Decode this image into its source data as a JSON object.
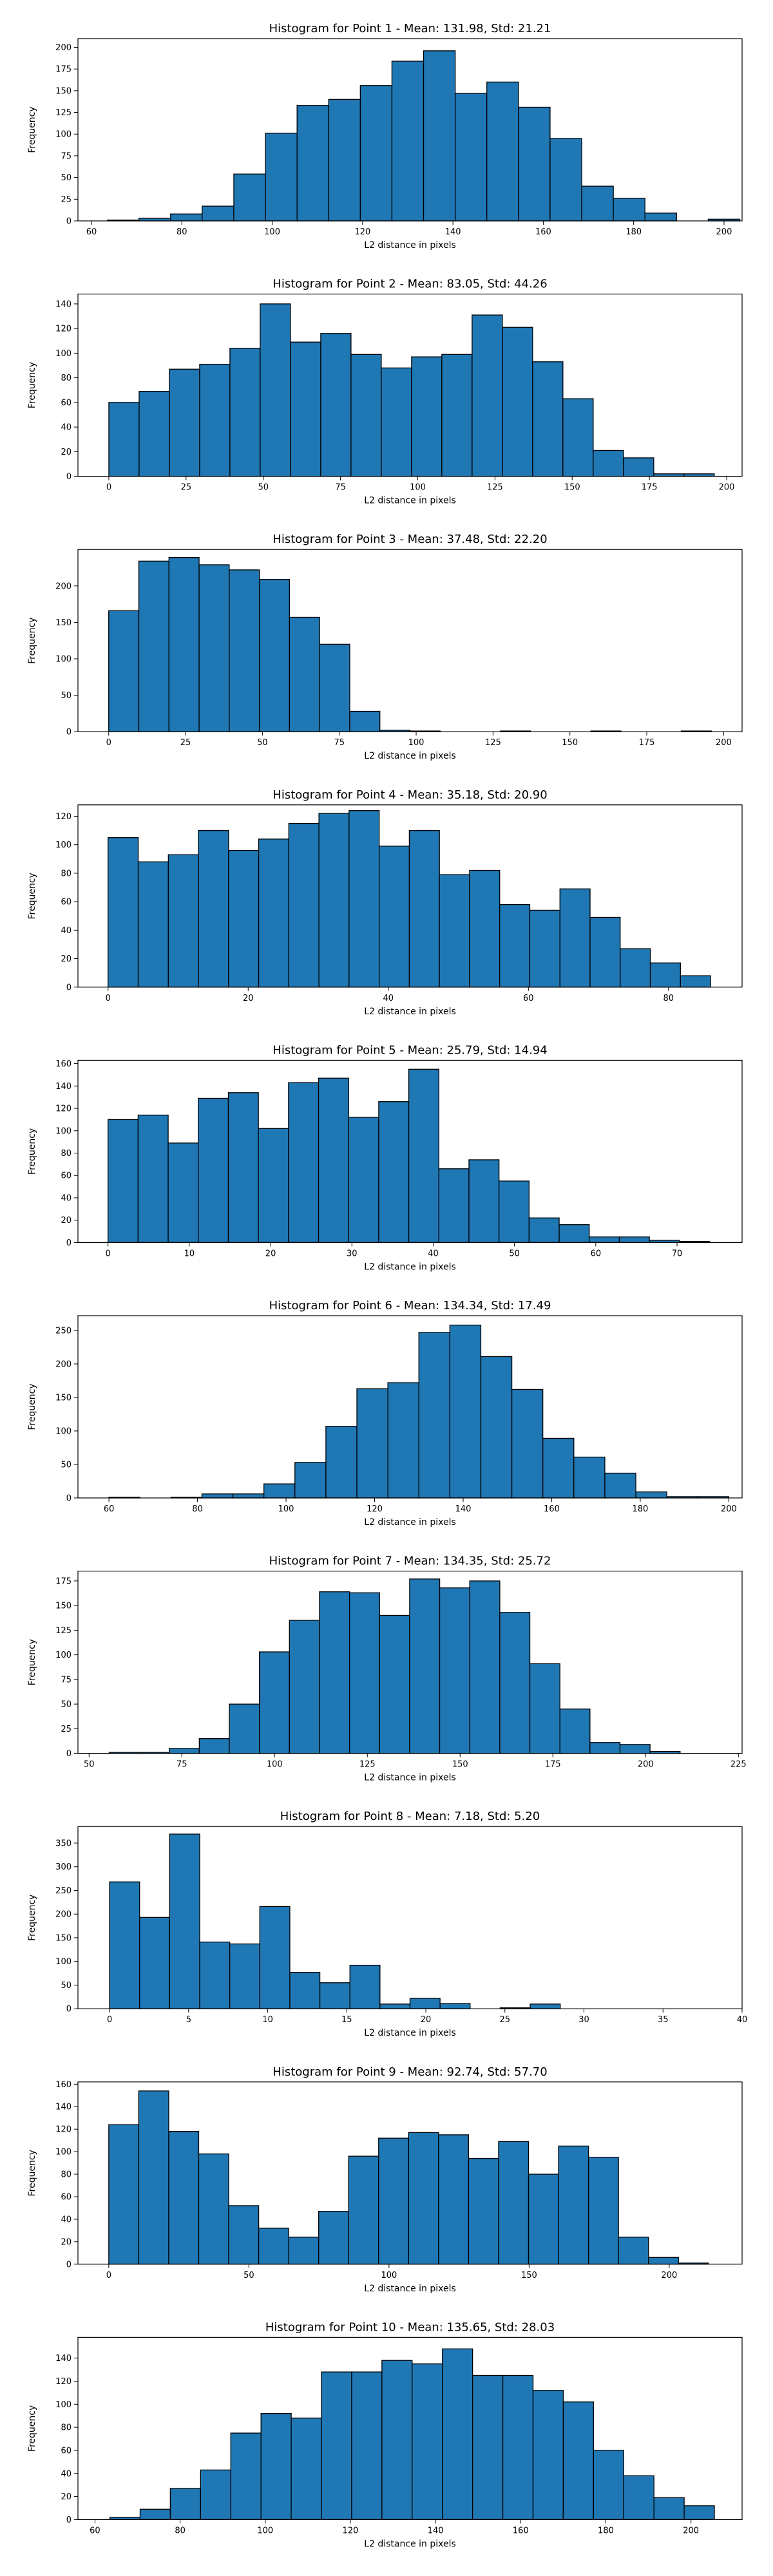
{
  "chart_data": [
    {
      "type": "bar",
      "title": "Histogram for Point 1 - Mean: 131.98, Std: 21.21",
      "xlabel": "L2 distance in pixels",
      "ylabel": "Frequency",
      "xlim": [
        57,
        204
      ],
      "ylim": [
        0,
        210
      ],
      "xticks": [
        60,
        80,
        100,
        120,
        140,
        160,
        180,
        200
      ],
      "yticks": [
        0,
        25,
        50,
        75,
        100,
        125,
        150,
        175,
        200
      ],
      "bin_edges": [
        63.5,
        70.5,
        77.5,
        84.5,
        91.5,
        98.5,
        105.5,
        112.5,
        119.5,
        126.5,
        133.5,
        140.5,
        147.5,
        154.5,
        161.5,
        168.5,
        175.5,
        182.5,
        189.5,
        196.5,
        203.5
      ],
      "values": [
        1,
        3,
        8,
        17,
        54,
        101,
        133,
        140,
        156,
        184,
        196,
        147,
        160,
        131,
        95,
        40,
        26,
        9,
        0,
        2
      ]
    },
    {
      "type": "bar",
      "title": "Histogram for Point 2 - Mean: 83.05, Std: 44.26",
      "xlabel": "L2 distance in pixels",
      "ylabel": "Frequency",
      "xlim": [
        -10,
        205
      ],
      "ylim": [
        0,
        148
      ],
      "xticks": [
        0,
        25,
        50,
        75,
        100,
        125,
        150,
        175,
        200
      ],
      "yticks": [
        0,
        20,
        40,
        60,
        80,
        100,
        120,
        140
      ],
      "bin_edges": [
        0,
        9.8,
        19.6,
        29.4,
        39.2,
        49,
        58.8,
        68.6,
        78.4,
        88.2,
        98,
        107.8,
        117.6,
        127.4,
        137.2,
        147,
        156.8,
        166.6,
        176.4,
        186.2,
        196
      ],
      "values": [
        60,
        69,
        87,
        91,
        104,
        140,
        109,
        116,
        99,
        88,
        97,
        99,
        131,
        121,
        93,
        63,
        21,
        15,
        2,
        2
      ]
    },
    {
      "type": "bar",
      "title": "Histogram for Point 3 - Mean: 37.48, Std: 22.20",
      "xlabel": "L2 distance in pixels",
      "ylabel": "Frequency",
      "xlim": [
        -10,
        206
      ],
      "ylim": [
        0,
        250
      ],
      "xticks": [
        0,
        25,
        50,
        75,
        100,
        125,
        150,
        175,
        200
      ],
      "yticks": [
        0,
        50,
        100,
        150,
        200
      ],
      "bin_edges": [
        0,
        9.8,
        19.6,
        29.4,
        39.2,
        49,
        58.8,
        68.6,
        78.4,
        88.2,
        98,
        107.8,
        117.6,
        127.4,
        137.2,
        147,
        156.8,
        166.6,
        176.4,
        186.2,
        196
      ],
      "values": [
        166,
        234,
        239,
        229,
        222,
        209,
        157,
        120,
        28,
        2,
        1,
        0,
        0,
        1,
        0,
        0,
        1,
        0,
        0,
        1
      ]
    },
    {
      "type": "bar",
      "title": "Histogram for Point 4 - Mean: 35.18, Std: 20.90",
      "xlabel": "L2 distance in pixels",
      "ylabel": "Frequency",
      "xlim": [
        -4.3,
        90.5
      ],
      "ylim": [
        0,
        128
      ],
      "xticks": [
        0,
        20,
        40,
        60,
        80
      ],
      "yticks": [
        0,
        20,
        40,
        60,
        80,
        100,
        120
      ],
      "bin_edges": [
        0,
        4.3,
        8.6,
        12.9,
        17.2,
        21.5,
        25.8,
        30.1,
        34.4,
        38.7,
        43,
        47.3,
        51.6,
        55.9,
        60.2,
        64.5,
        68.8,
        73.1,
        77.4,
        81.7,
        86
      ],
      "values": [
        105,
        88,
        93,
        110,
        96,
        104,
        115,
        122,
        124,
        99,
        110,
        79,
        82,
        58,
        54,
        69,
        49,
        27,
        17,
        8
      ]
    },
    {
      "type": "bar",
      "title": "Histogram for Point 5 - Mean: 25.79, Std: 14.94",
      "xlabel": "L2 distance in pixels",
      "ylabel": "Frequency",
      "xlim": [
        -3.7,
        78
      ],
      "ylim": [
        0,
        163
      ],
      "xticks": [
        0,
        10,
        20,
        30,
        40,
        50,
        60,
        70
      ],
      "yticks": [
        0,
        20,
        40,
        60,
        80,
        100,
        120,
        140,
        160
      ],
      "bin_edges": [
        0,
        3.7,
        7.4,
        11.1,
        14.8,
        18.5,
        22.2,
        25.9,
        29.6,
        33.3,
        37,
        40.7,
        44.4,
        48.1,
        51.8,
        55.5,
        59.2,
        62.9,
        66.6,
        70.3,
        74
      ],
      "values": [
        110,
        114,
        89,
        129,
        134,
        102,
        143,
        147,
        112,
        126,
        155,
        66,
        74,
        55,
        22,
        16,
        5,
        5,
        2,
        1
      ]
    },
    {
      "type": "bar",
      "title": "Histogram for Point 6 - Mean: 134.34, Std: 17.49",
      "xlabel": "L2 distance in pixels",
      "ylabel": "Frequency",
      "xlim": [
        53,
        203
      ],
      "ylim": [
        0,
        272
      ],
      "xticks": [
        60,
        80,
        100,
        120,
        140,
        160,
        180,
        200
      ],
      "yticks": [
        0,
        50,
        100,
        150,
        200,
        250
      ],
      "bin_edges": [
        60,
        67,
        74,
        81,
        88,
        95,
        102,
        109,
        116,
        123,
        130,
        137,
        144,
        151,
        158,
        165,
        172,
        179,
        186,
        193,
        200
      ],
      "values": [
        1,
        0,
        1,
        6,
        6,
        21,
        53,
        107,
        163,
        172,
        247,
        258,
        211,
        162,
        89,
        61,
        37,
        9,
        2,
        2
      ]
    },
    {
      "type": "bar",
      "title": "Histogram for Point 7 - Mean: 134.35, Std: 25.72",
      "xlabel": "L2 distance in pixels",
      "ylabel": "Frequency",
      "xlim": [
        47,
        226
      ],
      "ylim": [
        0,
        185
      ],
      "xticks": [
        50,
        75,
        100,
        125,
        150,
        175,
        200,
        225
      ],
      "yticks": [
        0,
        25,
        50,
        75,
        100,
        125,
        150,
        175
      ],
      "bin_edges": [
        55.4,
        63.5,
        71.6,
        79.7,
        87.8,
        95.9,
        104,
        112.1,
        120.2,
        128.3,
        136.4,
        144.5,
        152.6,
        160.7,
        168.8,
        176.9,
        185,
        193.1,
        201.2,
        209.3,
        217.4
      ],
      "values": [
        1,
        1,
        5,
        15,
        50,
        103,
        135,
        164,
        163,
        140,
        177,
        168,
        175,
        143,
        91,
        45,
        11,
        9,
        2,
        0
      ]
    },
    {
      "type": "bar",
      "title": "Histogram for Point 8 - Mean: 7.18, Std: 5.20",
      "xlabel": "L2 distance in pixels",
      "ylabel": "Frequency",
      "xlim": [
        -2,
        40
      ],
      "ylim": [
        0,
        385
      ],
      "xticks": [
        0,
        5,
        10,
        15,
        20,
        25,
        30,
        35,
        40
      ],
      "yticks": [
        0,
        50,
        100,
        150,
        200,
        250,
        300,
        350
      ],
      "bin_edges": [
        0,
        1.9,
        3.8,
        5.7,
        7.6,
        9.5,
        11.4,
        13.3,
        15.2,
        17.1,
        19,
        20.9,
        22.8,
        24.7,
        26.6,
        28.5,
        30.4,
        32.3,
        34.2,
        36.1,
        38
      ],
      "values": [
        268,
        193,
        369,
        141,
        137,
        216,
        77,
        55,
        92,
        10,
        22,
        11,
        0,
        2,
        10,
        0,
        0,
        0,
        0,
        0
      ]
    },
    {
      "type": "bar",
      "title": "Histogram for Point 9 - Mean: 92.74, Std: 57.70",
      "xlabel": "L2 distance in pixels",
      "ylabel": "Frequency",
      "xlim": [
        -11,
        226
      ],
      "ylim": [
        0,
        162
      ],
      "xticks": [
        0,
        50,
        100,
        150,
        200
      ],
      "yticks": [
        0,
        20,
        40,
        60,
        80,
        100,
        120,
        140,
        160
      ],
      "bin_edges": [
        0,
        10.7,
        21.4,
        32.1,
        42.8,
        53.5,
        64.2,
        74.9,
        85.6,
        96.3,
        107,
        117.7,
        128.4,
        139.1,
        149.8,
        160.5,
        171.2,
        181.9,
        192.6,
        203.3,
        214
      ],
      "values": [
        124,
        154,
        118,
        98,
        52,
        32,
        24,
        47,
        96,
        112,
        117,
        115,
        94,
        109,
        80,
        105,
        95,
        24,
        6,
        1
      ]
    },
    {
      "type": "bar",
      "title": "Histogram for Point 10 - Mean: 135.65, Std: 28.03",
      "xlabel": "L2 distance in pixels",
      "ylabel": "Frequency",
      "xlim": [
        56,
        212
      ],
      "ylim": [
        0,
        158
      ],
      "xticks": [
        60,
        80,
        100,
        120,
        140,
        160,
        180,
        200
      ],
      "yticks": [
        0,
        20,
        40,
        60,
        80,
        100,
        120,
        140
      ],
      "bin_edges": [
        63.5,
        70.6,
        77.7,
        84.8,
        91.9,
        99,
        106.1,
        113.2,
        120.3,
        127.4,
        134.5,
        141.6,
        148.7,
        155.8,
        162.9,
        170,
        177.1,
        184.2,
        191.3,
        198.4,
        205.5
      ],
      "values": [
        2,
        9,
        27,
        43,
        75,
        92,
        88,
        128,
        128,
        138,
        135,
        148,
        125,
        125,
        112,
        102,
        60,
        38,
        19,
        12
      ]
    }
  ]
}
